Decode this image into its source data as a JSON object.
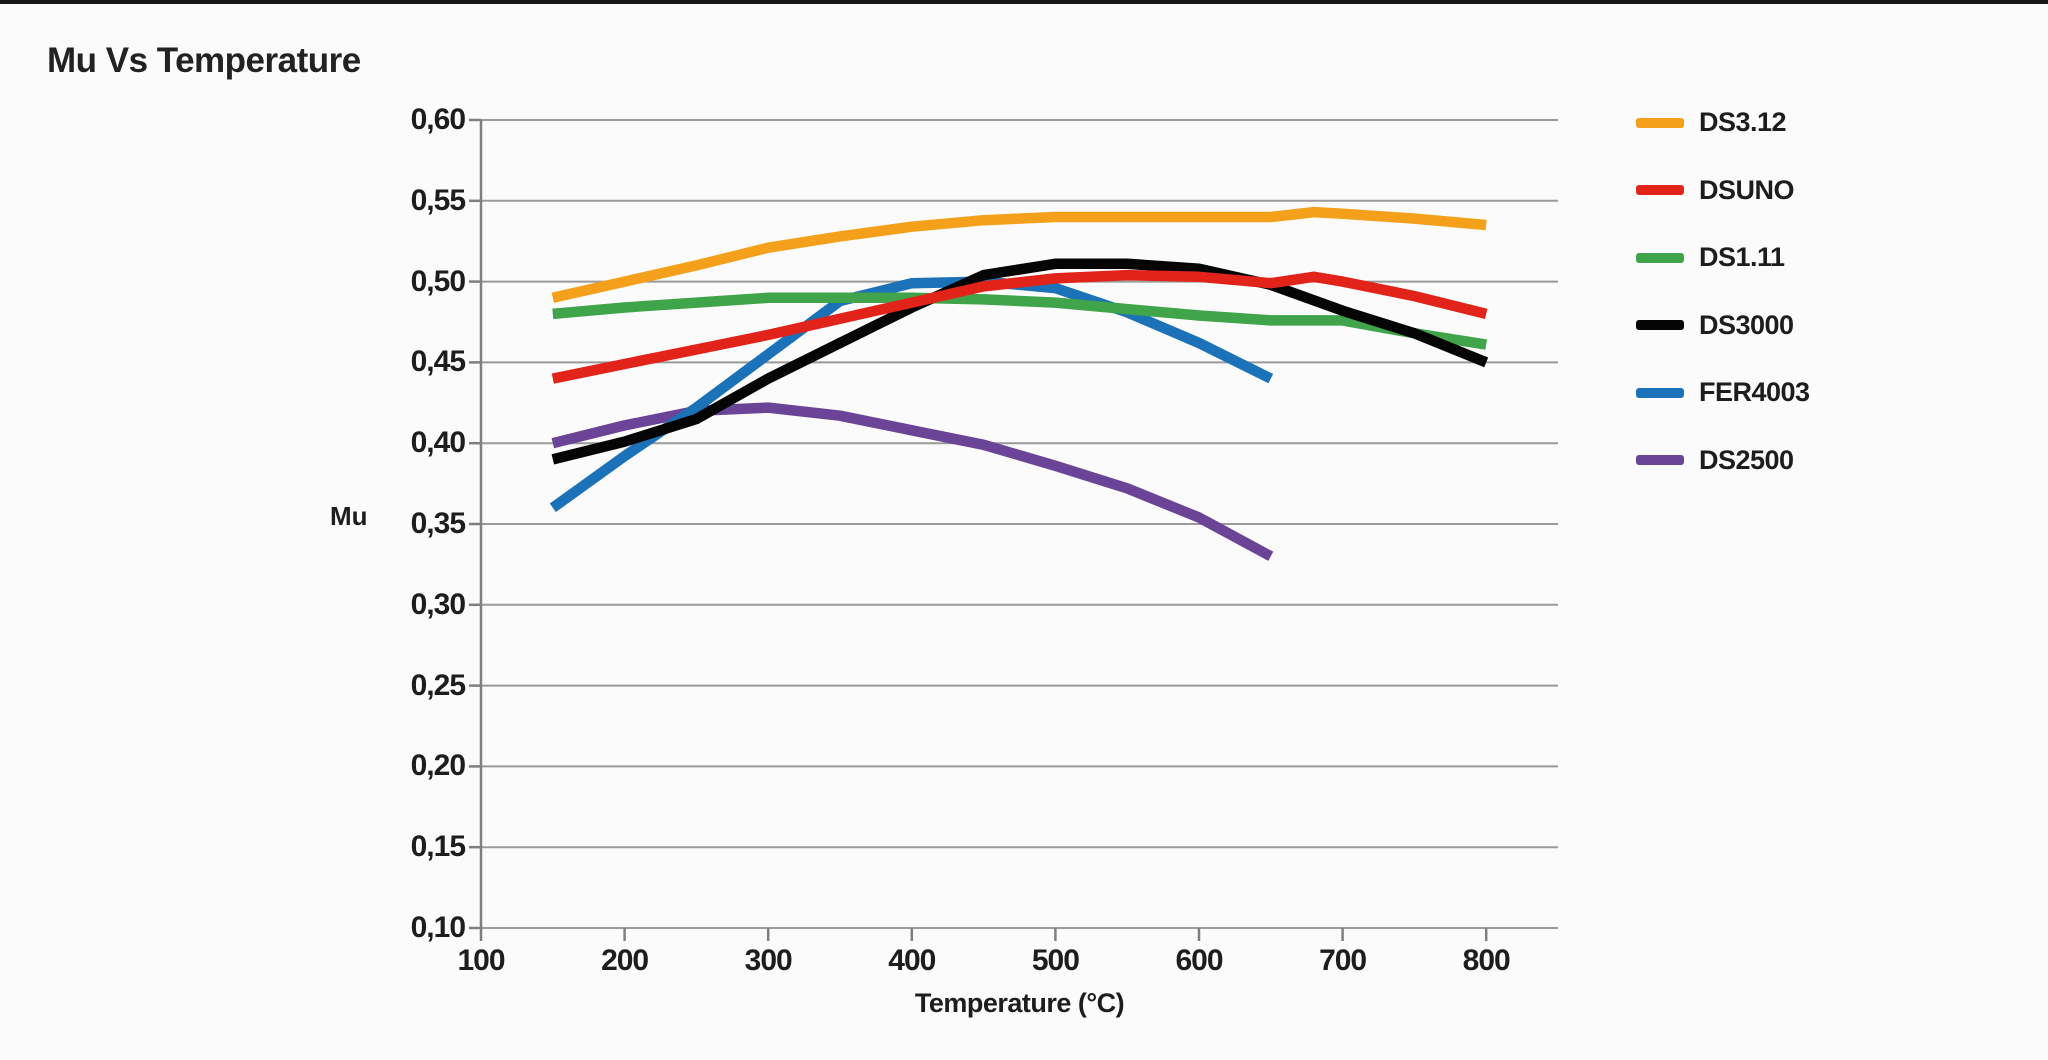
{
  "page": {
    "title": "Mu Vs Temperature"
  },
  "chart_data": {
    "type": "line",
    "title": "Mu Vs Temperature",
    "xlabel": "Temperature (°C)",
    "ylabel": "Mu",
    "xlim": [
      100,
      850
    ],
    "ylim": [
      0.1,
      0.6
    ],
    "grid": "horizontal",
    "legend_position": "right",
    "decimal_separator": ",",
    "x_ticks": [
      100,
      200,
      300,
      400,
      500,
      600,
      700,
      800
    ],
    "x_tick_labels": [
      "100",
      "200",
      "300",
      "400",
      "500",
      "600",
      "700",
      "800"
    ],
    "y_ticks": [
      0.1,
      0.15,
      0.2,
      0.25,
      0.3,
      0.35,
      0.4,
      0.45,
      0.5,
      0.55,
      0.6
    ],
    "y_tick_labels": [
      "0,10",
      "0,15",
      "0,20",
      "0,25",
      "0,30",
      "0,35",
      "0,40",
      "0,45",
      "0,50",
      "0,55",
      "0,60"
    ],
    "colors": {
      "grid": "#9a9a9a",
      "axis": "#7f7f7f",
      "text": "#1d1d1b",
      "background": "#fbfbfb"
    },
    "series": [
      {
        "name": "DS3.12",
        "color": "#F5A01B",
        "points": [
          [
            150,
            0.49
          ],
          [
            200,
            0.5
          ],
          [
            250,
            0.51
          ],
          [
            300,
            0.521
          ],
          [
            350,
            0.528
          ],
          [
            400,
            0.534
          ],
          [
            450,
            0.538
          ],
          [
            500,
            0.54
          ],
          [
            550,
            0.54
          ],
          [
            600,
            0.54
          ],
          [
            650,
            0.54
          ],
          [
            680,
            0.543
          ],
          [
            700,
            0.542
          ],
          [
            750,
            0.539
          ],
          [
            800,
            0.535
          ]
        ]
      },
      {
        "name": "DSUNO",
        "color": "#E2231A",
        "points": [
          [
            150,
            0.44
          ],
          [
            200,
            0.449
          ],
          [
            250,
            0.458
          ],
          [
            300,
            0.467
          ],
          [
            350,
            0.477
          ],
          [
            400,
            0.487
          ],
          [
            450,
            0.497
          ],
          [
            500,
            0.502
          ],
          [
            550,
            0.504
          ],
          [
            600,
            0.503
          ],
          [
            650,
            0.499
          ],
          [
            680,
            0.503
          ],
          [
            700,
            0.5
          ],
          [
            750,
            0.491
          ],
          [
            800,
            0.48
          ]
        ]
      },
      {
        "name": "DS1.11",
        "color": "#3FA44A",
        "points": [
          [
            150,
            0.48
          ],
          [
            200,
            0.484
          ],
          [
            250,
            0.487
          ],
          [
            300,
            0.49
          ],
          [
            350,
            0.49
          ],
          [
            400,
            0.49
          ],
          [
            450,
            0.489
          ],
          [
            500,
            0.487
          ],
          [
            550,
            0.483
          ],
          [
            600,
            0.479
          ],
          [
            650,
            0.476
          ],
          [
            700,
            0.476
          ],
          [
            750,
            0.468
          ],
          [
            800,
            0.461
          ]
        ]
      },
      {
        "name": "DS3000",
        "color": "#050505",
        "points": [
          [
            150,
            0.39
          ],
          [
            200,
            0.401
          ],
          [
            250,
            0.415
          ],
          [
            300,
            0.44
          ],
          [
            350,
            0.462
          ],
          [
            400,
            0.484
          ],
          [
            450,
            0.504
          ],
          [
            500,
            0.511
          ],
          [
            550,
            0.511
          ],
          [
            600,
            0.508
          ],
          [
            650,
            0.498
          ],
          [
            700,
            0.482
          ],
          [
            750,
            0.468
          ],
          [
            800,
            0.45
          ]
        ]
      },
      {
        "name": "FER4003",
        "color": "#1C72B8",
        "points": [
          [
            150,
            0.36
          ],
          [
            200,
            0.392
          ],
          [
            250,
            0.422
          ],
          [
            300,
            0.455
          ],
          [
            350,
            0.488
          ],
          [
            400,
            0.499
          ],
          [
            450,
            0.5
          ],
          [
            500,
            0.496
          ],
          [
            550,
            0.481
          ],
          [
            600,
            0.462
          ],
          [
            650,
            0.44
          ]
        ]
      },
      {
        "name": "DS2500",
        "color": "#6B4397",
        "points": [
          [
            150,
            0.4
          ],
          [
            200,
            0.411
          ],
          [
            250,
            0.42
          ],
          [
            300,
            0.422
          ],
          [
            350,
            0.417
          ],
          [
            400,
            0.408
          ],
          [
            450,
            0.399
          ],
          [
            500,
            0.386
          ],
          [
            550,
            0.372
          ],
          [
            600,
            0.354
          ],
          [
            650,
            0.33
          ]
        ]
      }
    ]
  }
}
